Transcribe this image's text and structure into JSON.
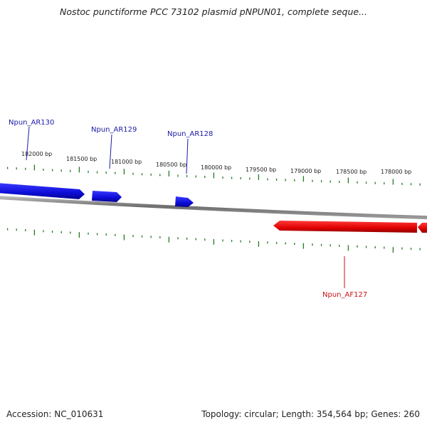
{
  "title": "Nostoc punctiforme PCC 73102 plasmid pNPUN01, complete seque...",
  "footer": {
    "accession": "Accession: NC_010631",
    "summary": "Topology: circular; Length: 354,564 bp; Genes: 260"
  },
  "colors": {
    "forward_gene": "#1515d8",
    "reverse_gene": "#e00000",
    "backbone": "#808080",
    "ticks": "#227a22",
    "forward_label": "#1a1aa6",
    "reverse_label": "#cc1111"
  },
  "tick_labels": [
    "182000 bp",
    "181500 bp",
    "181000 bp",
    "180500 bp",
    "180000 bp",
    "179500 bp",
    "179000 bp",
    "178500 bp",
    "178000 bp"
  ],
  "genes": [
    {
      "name": "Npun_AR130",
      "strand": "forward"
    },
    {
      "name": "Npun_AR129",
      "strand": "forward"
    },
    {
      "name": "Npun_AR128",
      "strand": "forward"
    },
    {
      "name": "Npun_AF127",
      "strand": "reverse"
    }
  ]
}
